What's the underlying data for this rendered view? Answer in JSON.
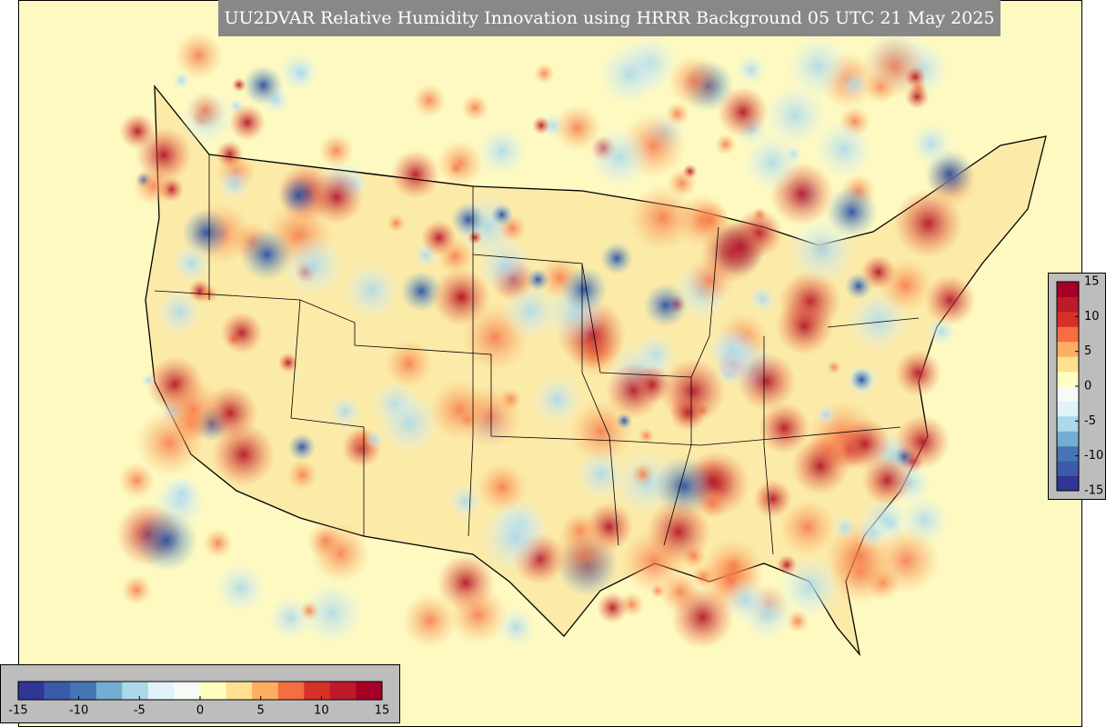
{
  "title": "UU2DVAR Relative Humidity Innovation using HRRR Background 05 UTC 21 May 2025",
  "colorbar_bottom": {
    "range": [
      -15,
      15
    ],
    "ticks": [
      -15,
      -10,
      -5,
      0,
      5,
      10,
      15
    ],
    "colors": [
      "#313695",
      "#3b5ba8",
      "#4575b4",
      "#74add1",
      "#abd9e9",
      "#e0f3f8",
      "#f7fbf6",
      "#ffffbf",
      "#fee090",
      "#fdae61",
      "#f46d43",
      "#d73027",
      "#bd1a29",
      "#a50026"
    ]
  },
  "colorbar_right": {
    "range": [
      -15,
      15
    ],
    "ticks": [
      -15,
      -10,
      -5,
      0,
      5,
      10,
      15
    ],
    "colors": [
      "#313695",
      "#3b5ba8",
      "#4575b4",
      "#74add1",
      "#abd9e9",
      "#e0f3f8",
      "#f7fbf6",
      "#ffffbf",
      "#fee090",
      "#fdae61",
      "#f46d43",
      "#d73027",
      "#bd1a29",
      "#a50026"
    ]
  }
}
